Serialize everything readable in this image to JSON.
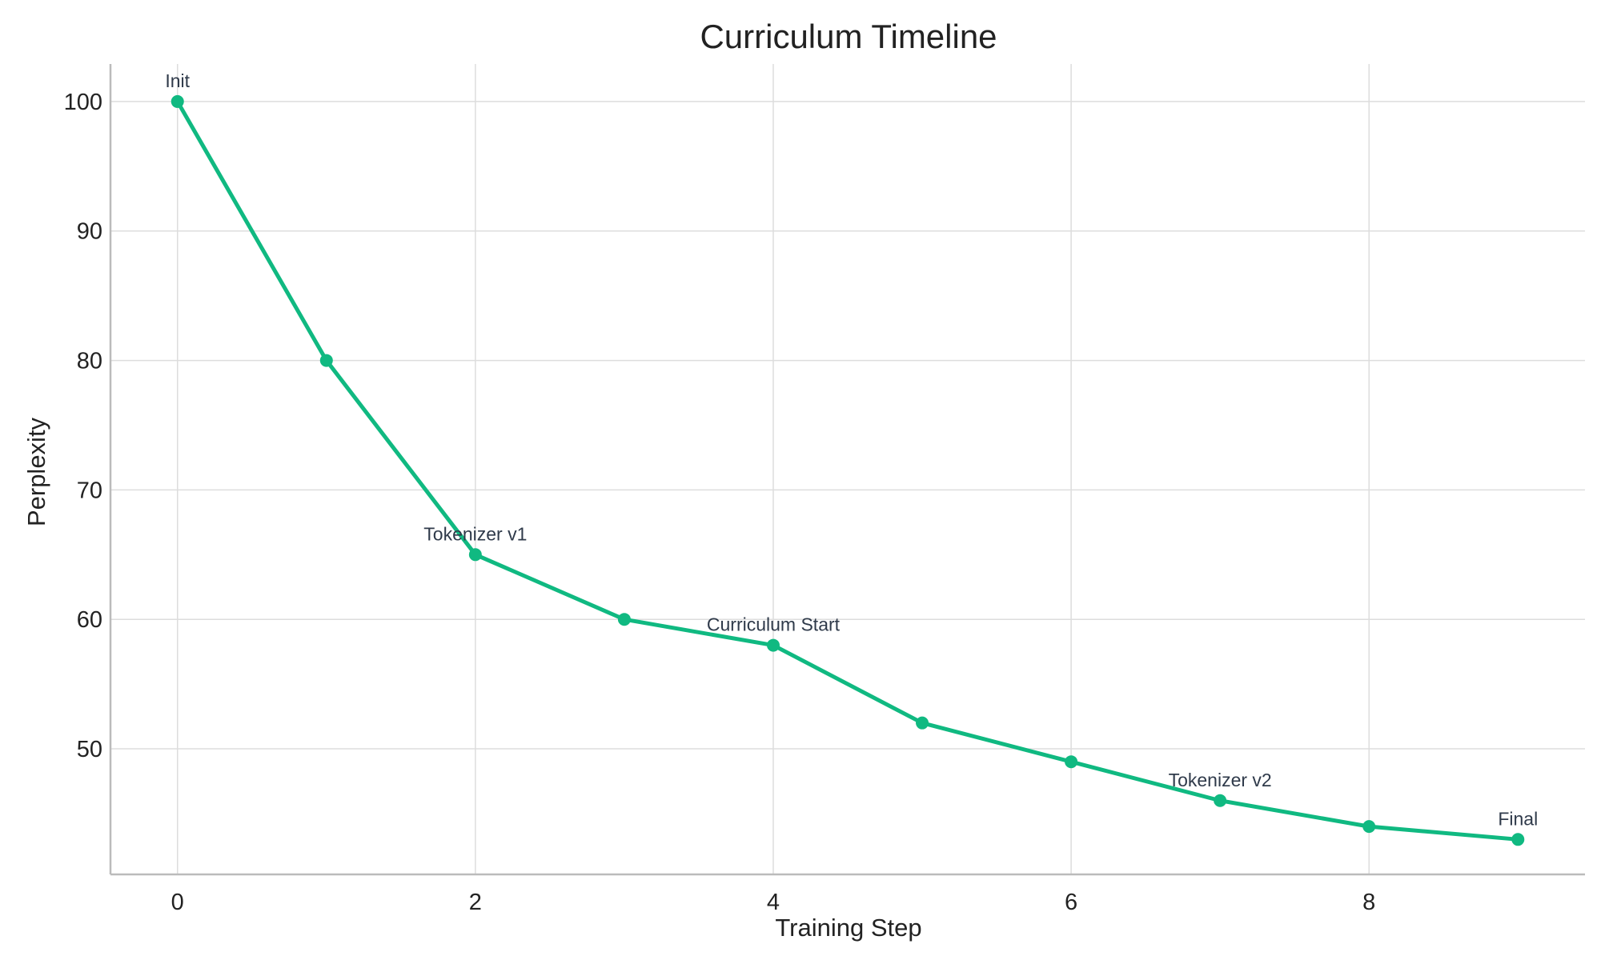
{
  "chart_data": {
    "type": "line",
    "title": "Curriculum Timeline",
    "xlabel": "Training Step",
    "ylabel": "Perplexity",
    "xlim": [
      -0.45,
      9.45
    ],
    "ylim": [
      40.3,
      102.9
    ],
    "xticks": [
      0,
      2,
      4,
      6,
      8
    ],
    "yticks": [
      50,
      60,
      70,
      80,
      90,
      100
    ],
    "grid": true,
    "legend": "none",
    "series": [
      {
        "x": [
          0,
          1,
          2,
          3,
          4,
          5,
          6,
          7,
          8,
          9
        ],
        "values": [
          100,
          80,
          65,
          60,
          58,
          52,
          49,
          46,
          44,
          43
        ],
        "color": "#10b981"
      }
    ],
    "annotations": [
      {
        "x": 0,
        "y": 100,
        "text": "Init"
      },
      {
        "x": 2,
        "y": 65,
        "text": "Tokenizer v1"
      },
      {
        "x": 4,
        "y": 58,
        "text": "Curriculum Start"
      },
      {
        "x": 7,
        "y": 46,
        "text": "Tokenizer v2"
      },
      {
        "x": 9,
        "y": 43,
        "text": "Final"
      }
    ],
    "colors": {
      "line": "#10b981",
      "grid": "#dddddd",
      "axis": "#bbbbbb",
      "text": "#222222",
      "annotation": "#2f3a4a"
    }
  }
}
